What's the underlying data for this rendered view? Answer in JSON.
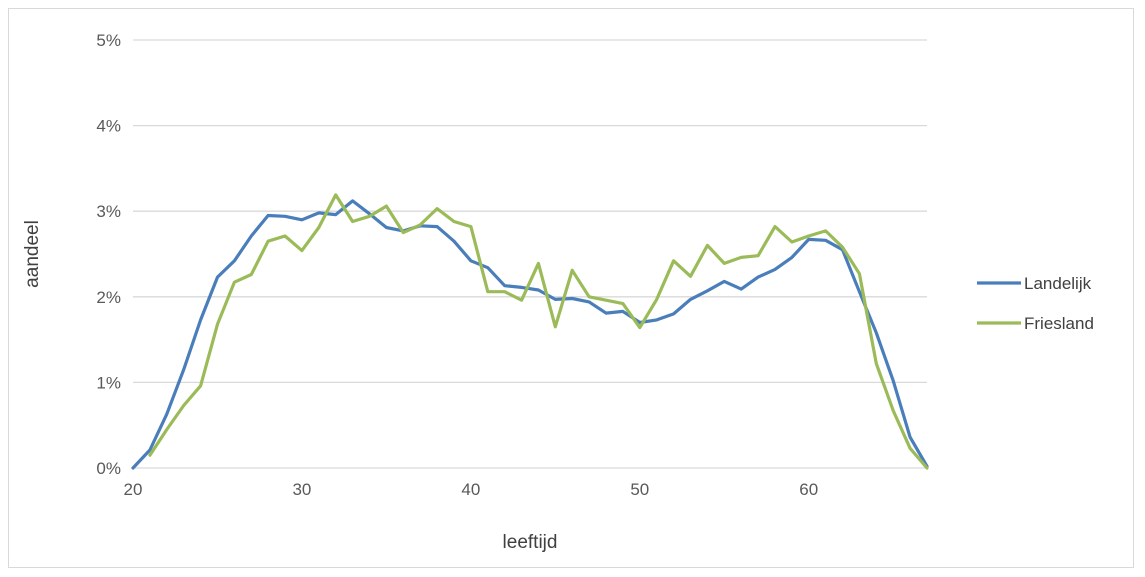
{
  "chart_data": {
    "type": "line",
    "xlabel": "leeftijd",
    "ylabel": "aandeel",
    "xlim": [
      20,
      67
    ],
    "ylim": [
      0,
      0.05
    ],
    "x_ticks": [
      {
        "value": 20,
        "label": "20"
      },
      {
        "value": 30,
        "label": "30"
      },
      {
        "value": 40,
        "label": "40"
      },
      {
        "value": 50,
        "label": "50"
      },
      {
        "value": 60,
        "label": "60"
      }
    ],
    "y_ticks": [
      {
        "value": 0,
        "label": "0%"
      },
      {
        "value": 0.01,
        "label": "1%"
      },
      {
        "value": 0.02,
        "label": "2%"
      },
      {
        "value": 0.03,
        "label": "3%"
      },
      {
        "value": 0.04,
        "label": "4%"
      },
      {
        "value": 0.05,
        "label": "5%"
      }
    ],
    "grid": "horizontal",
    "legend_position": "right",
    "series": [
      {
        "name": "Landelijk",
        "color": "#4a7ebb",
        "x": [
          20,
          21,
          22,
          23,
          24,
          25,
          26,
          27,
          28,
          29,
          30,
          31,
          32,
          33,
          34,
          35,
          36,
          37,
          38,
          39,
          40,
          41,
          42,
          43,
          44,
          45,
          46,
          47,
          48,
          49,
          50,
          51,
          52,
          53,
          54,
          55,
          56,
          57,
          58,
          59,
          60,
          61,
          62,
          63,
          64,
          65,
          66,
          67
        ],
        "values": [
          0.0,
          0.0021,
          0.0063,
          0.0115,
          0.0173,
          0.0223,
          0.0242,
          0.0271,
          0.0295,
          0.0294,
          0.029,
          0.0298,
          0.0296,
          0.0312,
          0.0297,
          0.0281,
          0.0277,
          0.0283,
          0.0282,
          0.0265,
          0.0242,
          0.0234,
          0.0213,
          0.0211,
          0.0208,
          0.0197,
          0.0198,
          0.0194,
          0.0181,
          0.0183,
          0.017,
          0.0173,
          0.018,
          0.0197,
          0.0207,
          0.0218,
          0.0209,
          0.0223,
          0.0232,
          0.0246,
          0.0267,
          0.0266,
          0.0255,
          0.0206,
          0.0158,
          0.0102,
          0.0036,
          0.0002
        ]
      },
      {
        "name": "Friesland",
        "color": "#9bbb59",
        "x": [
          21,
          22,
          23,
          24,
          25,
          26,
          27,
          28,
          29,
          30,
          31,
          32,
          33,
          34,
          35,
          36,
          37,
          38,
          39,
          40,
          41,
          42,
          43,
          44,
          45,
          46,
          47,
          48,
          49,
          50,
          51,
          52,
          53,
          54,
          55,
          56,
          57,
          58,
          59,
          60,
          61,
          62,
          63,
          64,
          65,
          66,
          67
        ],
        "values": [
          0.0015,
          0.0045,
          0.0073,
          0.0096,
          0.0168,
          0.0217,
          0.0226,
          0.0265,
          0.0271,
          0.0254,
          0.0281,
          0.0319,
          0.0288,
          0.0294,
          0.0306,
          0.0275,
          0.0284,
          0.0303,
          0.0288,
          0.0282,
          0.0206,
          0.0206,
          0.0196,
          0.0239,
          0.0165,
          0.0231,
          0.02,
          0.0196,
          0.0192,
          0.0164,
          0.0197,
          0.0242,
          0.0224,
          0.026,
          0.0239,
          0.0246,
          0.0248,
          0.0282,
          0.0264,
          0.0271,
          0.0277,
          0.0258,
          0.0227,
          0.0122,
          0.0067,
          0.0023,
          0.0
        ]
      }
    ]
  }
}
